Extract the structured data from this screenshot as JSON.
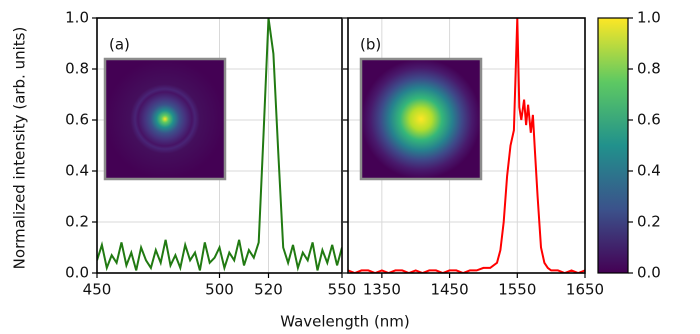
{
  "chart_data": [
    {
      "type": "line",
      "panel_label": "(a)",
      "color": "#217a12",
      "x": [
        450,
        452,
        454,
        456,
        458,
        460,
        462,
        464,
        466,
        468,
        470,
        472,
        474,
        476,
        478,
        480,
        482,
        484,
        486,
        488,
        490,
        492,
        494,
        496,
        498,
        500,
        502,
        504,
        506,
        508,
        510,
        512,
        514,
        516,
        518,
        520,
        522,
        524,
        526,
        528,
        530,
        532,
        534,
        536,
        538,
        540,
        542,
        544,
        546,
        548,
        550
      ],
      "values": [
        0.05,
        0.11,
        0.02,
        0.07,
        0.04,
        0.12,
        0.03,
        0.08,
        0.01,
        0.1,
        0.05,
        0.02,
        0.09,
        0.04,
        0.13,
        0.03,
        0.07,
        0.02,
        0.11,
        0.05,
        0.08,
        0.01,
        0.12,
        0.04,
        0.06,
        0.1,
        0.02,
        0.08,
        0.05,
        0.13,
        0.03,
        0.09,
        0.06,
        0.12,
        0.55,
        1.0,
        0.86,
        0.47,
        0.1,
        0.04,
        0.11,
        0.02,
        0.08,
        0.05,
        0.12,
        0.01,
        0.09,
        0.04,
        0.11,
        0.03,
        0.1
      ],
      "xlim": [
        450,
        550
      ],
      "ylim": [
        0,
        1
      ],
      "xticks": [
        450,
        500,
        520,
        550
      ],
      "yticks": [
        {
          "value": 0,
          "label": "0.0"
        },
        0.2,
        0.4,
        0.6,
        0.8,
        {
          "value": 1,
          "label": "1.0"
        }
      ],
      "show_ytick_labels": true,
      "grid": true
    },
    {
      "type": "line",
      "panel_label": "(b)",
      "color": "#ff0000",
      "x": [
        1300,
        1310,
        1320,
        1330,
        1340,
        1350,
        1360,
        1370,
        1380,
        1390,
        1400,
        1410,
        1420,
        1430,
        1440,
        1450,
        1460,
        1470,
        1480,
        1490,
        1500,
        1510,
        1520,
        1525,
        1530,
        1535,
        1540,
        1545,
        1550,
        1553,
        1556,
        1560,
        1563,
        1566,
        1570,
        1573,
        1576,
        1580,
        1585,
        1590,
        1595,
        1600,
        1610,
        1620,
        1630,
        1640,
        1650
      ],
      "values": [
        0.01,
        0.0,
        0.01,
        0.01,
        0.0,
        0.01,
        0.0,
        0.01,
        0.01,
        0.0,
        0.01,
        0.0,
        0.01,
        0.01,
        0.0,
        0.01,
        0.01,
        0.0,
        0.01,
        0.01,
        0.02,
        0.02,
        0.04,
        0.09,
        0.2,
        0.38,
        0.5,
        0.56,
        1.0,
        0.65,
        0.6,
        0.68,
        0.58,
        0.66,
        0.55,
        0.62,
        0.48,
        0.3,
        0.1,
        0.04,
        0.02,
        0.01,
        0.01,
        0.0,
        0.01,
        0.0,
        0.01
      ],
      "xlim": [
        1300,
        1650
      ],
      "ylim": [
        0,
        1
      ],
      "xticks": [
        1350,
        1450,
        1550,
        1650
      ],
      "yticks": [
        0,
        0.2,
        0.4,
        0.6,
        0.8,
        1
      ],
      "show_ytick_labels": false,
      "grid": true
    }
  ],
  "xlabel": "Wavelength (nm)",
  "ylabel": "Normalized intensity (arb. units)",
  "colorbar": {
    "colormap": "viridis",
    "lim": [
      0,
      1
    ],
    "ticks": [
      {
        "value": 0,
        "label": "0.0"
      },
      0.2,
      0.4,
      0.6,
      0.8,
      {
        "value": 1,
        "label": "1.0"
      }
    ]
  }
}
